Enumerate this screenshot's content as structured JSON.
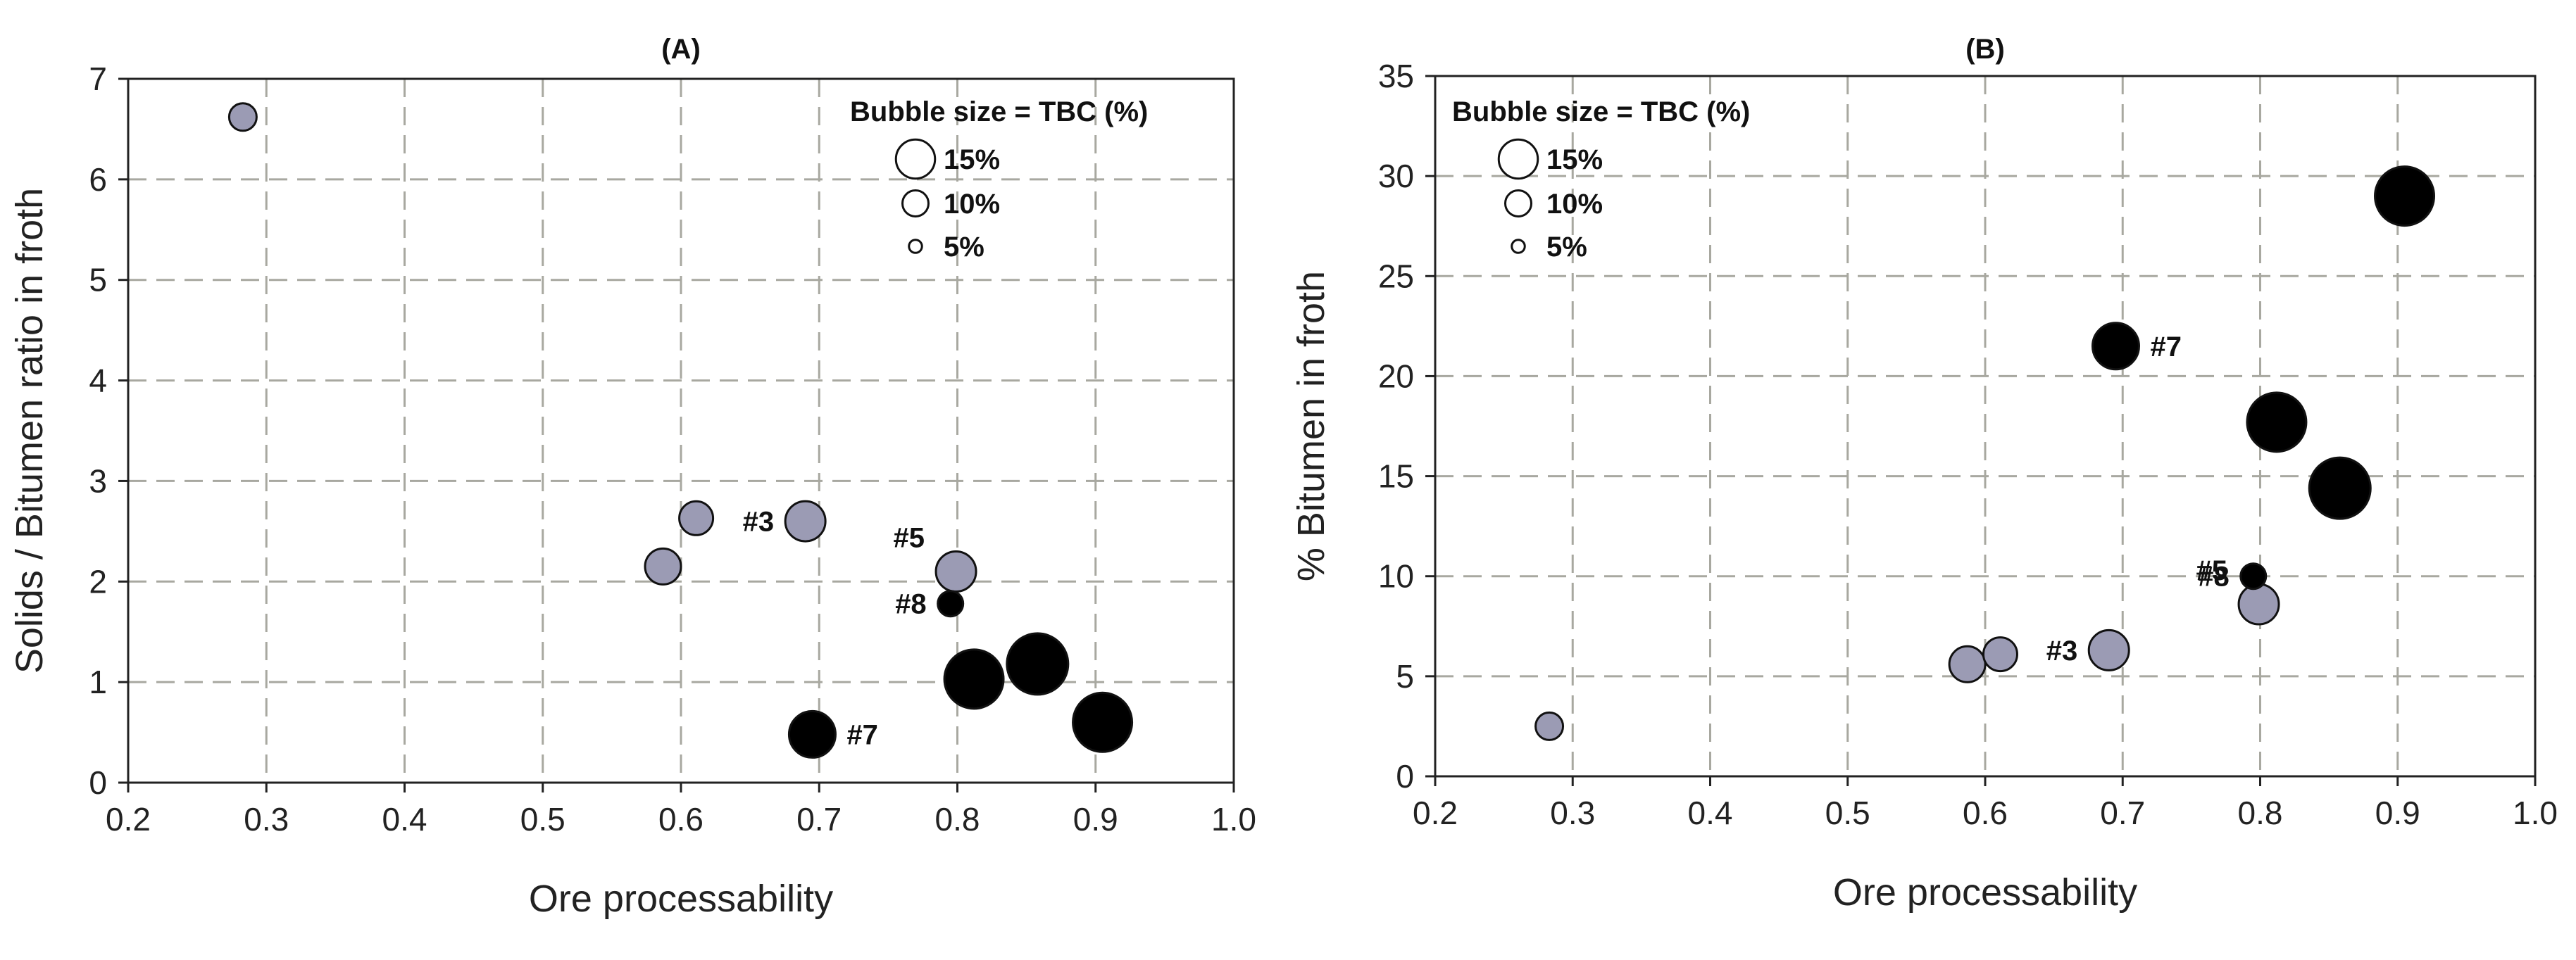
{
  "chart_data": [
    {
      "type": "scatter",
      "title": "(A)",
      "xlabel": "Ore processability",
      "ylabel": "Solids / Bitumen ratio in froth",
      "xlim": [
        0.2,
        1.0
      ],
      "ylim": [
        0,
        7
      ],
      "xticks": [
        "0.2",
        "0.3",
        "0.4",
        "0.5",
        "0.6",
        "0.7",
        "0.8",
        "0.9",
        "1.0"
      ],
      "yticks": [
        "0",
        "1",
        "2",
        "3",
        "4",
        "5",
        "6",
        "7"
      ],
      "grid": true,
      "legend": {
        "title": "Bubble size = TBC (%)",
        "position": "top-right",
        "entries": [
          {
            "label": "15%",
            "size": 15
          },
          {
            "label": "10%",
            "size": 10
          },
          {
            "label": "5%",
            "size": 5
          }
        ]
      },
      "points": [
        {
          "x": 0.283,
          "y": 6.62,
          "size": 6.5,
          "color": "#9b9bb4",
          "label": ""
        },
        {
          "x": 0.587,
          "y": 2.15,
          "size": 8.5,
          "color": "#9b9bb4",
          "label": ""
        },
        {
          "x": 0.611,
          "y": 2.63,
          "size": 8.0,
          "color": "#9b9bb4",
          "label": ""
        },
        {
          "x": 0.69,
          "y": 2.6,
          "size": 9.5,
          "color": "#9b9bb4",
          "label": "#3"
        },
        {
          "x": 0.799,
          "y": 2.1,
          "size": 9.5,
          "color": "#9b9bb4",
          "label": "#5"
        },
        {
          "x": 0.795,
          "y": 1.78,
          "size": 6.0,
          "color": "#000000",
          "label": "#8"
        },
        {
          "x": 0.695,
          "y": 0.48,
          "size": 11.0,
          "color": "#000000",
          "label": "#7"
        },
        {
          "x": 0.812,
          "y": 1.03,
          "size": 14.0,
          "color": "#000000",
          "label": ""
        },
        {
          "x": 0.858,
          "y": 1.18,
          "size": 14.5,
          "color": "#000000",
          "label": ""
        },
        {
          "x": 0.905,
          "y": 0.6,
          "size": 14.0,
          "color": "#000000",
          "label": ""
        }
      ]
    },
    {
      "type": "scatter",
      "title": "(B)",
      "xlabel": "Ore processability",
      "ylabel": "% Bitumen in froth",
      "xlim": [
        0.2,
        1.0
      ],
      "ylim": [
        0,
        35
      ],
      "xticks": [
        "0.2",
        "0.3",
        "0.4",
        "0.5",
        "0.6",
        "0.7",
        "0.8",
        "0.9",
        "1.0"
      ],
      "yticks": [
        "0",
        "5",
        "10",
        "15",
        "20",
        "25",
        "30",
        "35"
      ],
      "grid": true,
      "legend": {
        "title": "Bubble size = TBC (%)",
        "position": "top-left",
        "entries": [
          {
            "label": "15%",
            "size": 15
          },
          {
            "label": "10%",
            "size": 10
          },
          {
            "label": "5%",
            "size": 5
          }
        ]
      },
      "points": [
        {
          "x": 0.283,
          "y": 2.5,
          "size": 6.5,
          "color": "#9b9bb4",
          "label": ""
        },
        {
          "x": 0.587,
          "y": 5.6,
          "size": 8.5,
          "color": "#9b9bb4",
          "label": ""
        },
        {
          "x": 0.611,
          "y": 6.1,
          "size": 8.0,
          "color": "#9b9bb4",
          "label": ""
        },
        {
          "x": 0.69,
          "y": 6.3,
          "size": 9.5,
          "color": "#9b9bb4",
          "label": "#3"
        },
        {
          "x": 0.799,
          "y": 8.6,
          "size": 9.5,
          "color": "#9b9bb4",
          "label": "#5"
        },
        {
          "x": 0.795,
          "y": 10.0,
          "size": 6.0,
          "color": "#000000",
          "label": "#8"
        },
        {
          "x": 0.695,
          "y": 21.5,
          "size": 11.0,
          "color": "#000000",
          "label": "#7"
        },
        {
          "x": 0.812,
          "y": 17.7,
          "size": 14.0,
          "color": "#000000",
          "label": ""
        },
        {
          "x": 0.858,
          "y": 14.4,
          "size": 14.5,
          "color": "#000000",
          "label": ""
        },
        {
          "x": 0.905,
          "y": 29.0,
          "size": 14.0,
          "color": "#000000",
          "label": ""
        }
      ]
    }
  ]
}
